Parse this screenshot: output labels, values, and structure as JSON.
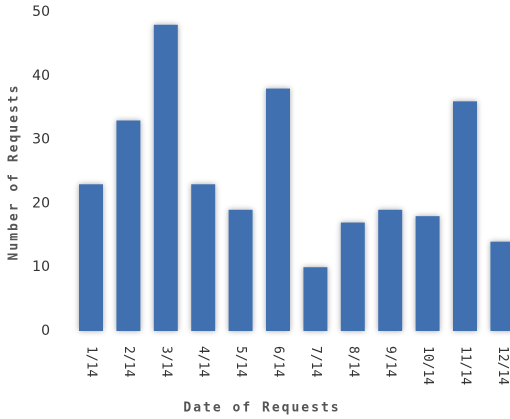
{
  "chart_data": {
    "type": "bar",
    "xlabel": "Date of Requests",
    "ylabel": "Number of Requests",
    "categories": [
      "1/14",
      "2/14",
      "3/14",
      "4/14",
      "5/14",
      "6/14",
      "7/14",
      "8/14",
      "9/14",
      "10/14",
      "11/14",
      "12/14"
    ],
    "values": [
      23,
      33,
      48,
      23,
      19,
      38,
      10,
      17,
      19,
      18,
      36,
      14
    ],
    "color": "#3f6fb0",
    "ylim": [
      0,
      50
    ],
    "yticks": [
      0,
      10,
      20,
      30,
      40,
      50
    ],
    "grid": false
  }
}
